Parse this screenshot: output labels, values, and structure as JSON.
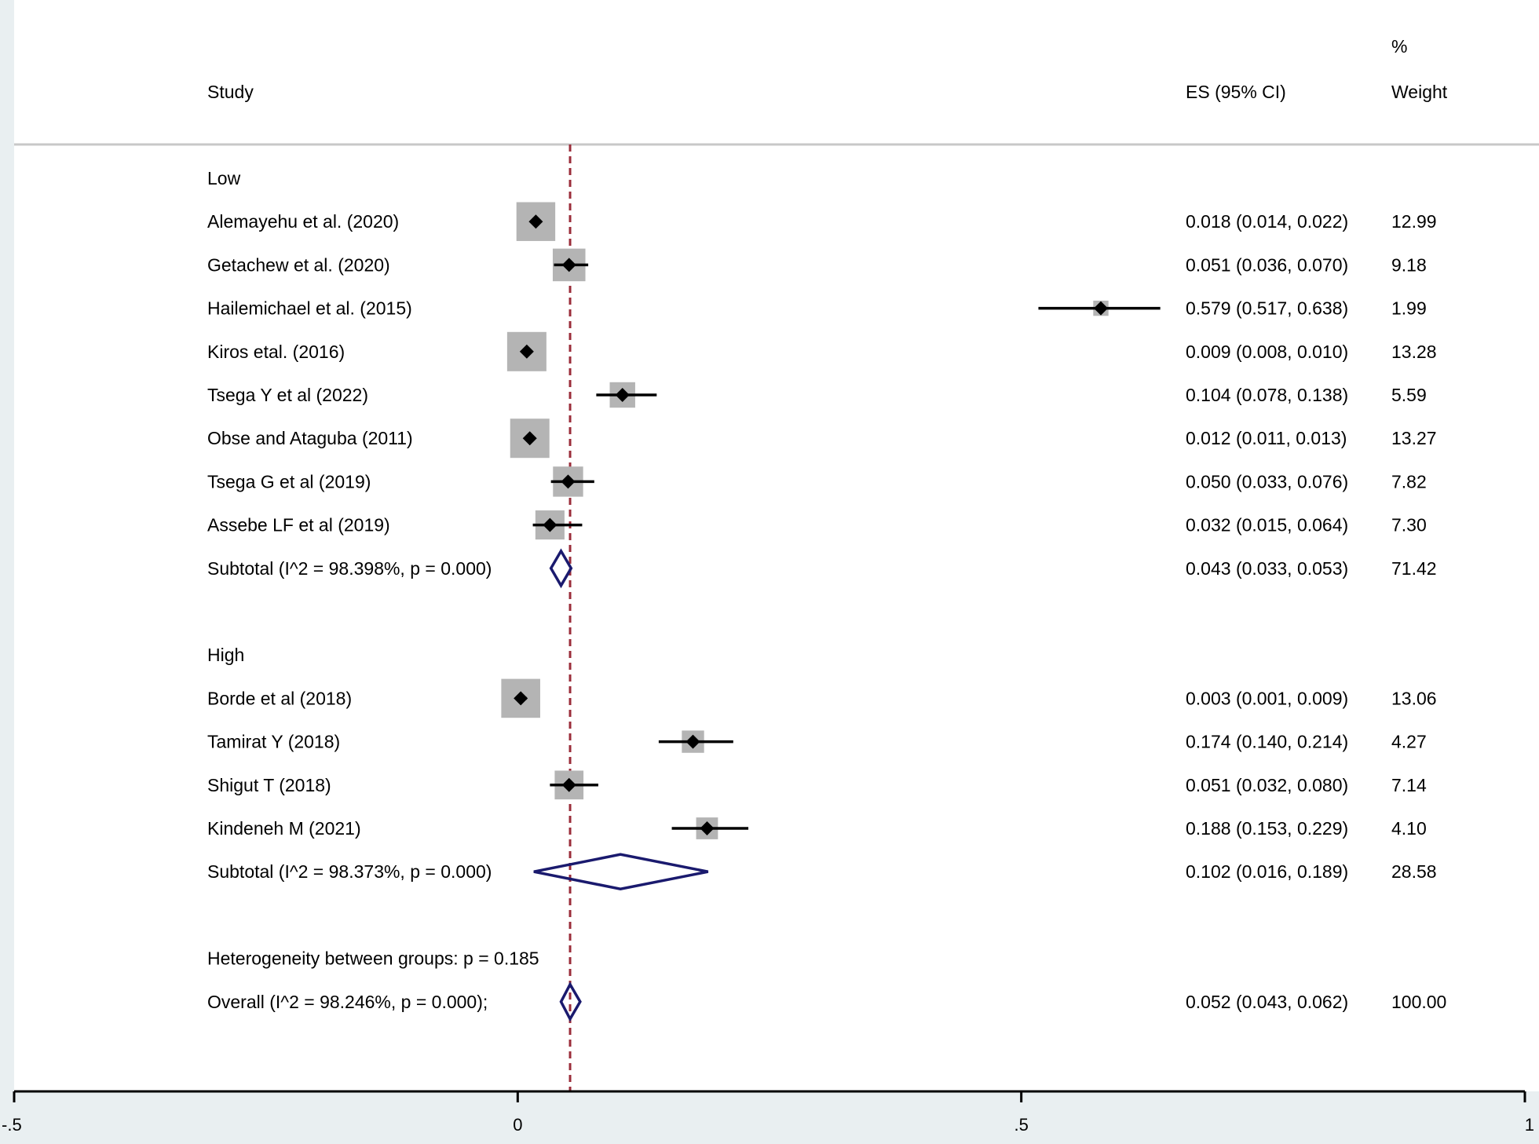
{
  "chart_data": {
    "type": "forest",
    "title": "",
    "xlabel": "",
    "ylabel": "",
    "xlim": [
      -0.5,
      1
    ],
    "xticks": [
      -0.5,
      0,
      0.5,
      1
    ],
    "xtick_labels": [
      "-.5",
      "0",
      ".5",
      "1"
    ],
    "reference_line": 0.052,
    "headers": {
      "study": "Study",
      "es": "ES (95% CI)",
      "weight_pct": "%",
      "weight": "Weight"
    },
    "rows": [
      {
        "kind": "group",
        "label": "Low"
      },
      {
        "kind": "study",
        "label": "Alemayehu et al. (2020)",
        "es": 0.018,
        "lo": 0.014,
        "hi": 0.022,
        "ci_text": "0.018 (0.014, 0.022)",
        "weight": 12.99,
        "weight_text": "12.99"
      },
      {
        "kind": "study",
        "label": "Getachew et al. (2020)",
        "es": 0.051,
        "lo": 0.036,
        "hi": 0.07,
        "ci_text": "0.051 (0.036, 0.070)",
        "weight": 9.18,
        "weight_text": "9.18"
      },
      {
        "kind": "study",
        "label": "Hailemichael et al. (2015)",
        "es": 0.579,
        "lo": 0.517,
        "hi": 0.638,
        "ci_text": "0.579 (0.517, 0.638)",
        "weight": 1.99,
        "weight_text": "1.99"
      },
      {
        "kind": "study",
        "label": "Kiros etal.  (2016)",
        "es": 0.009,
        "lo": 0.008,
        "hi": 0.01,
        "ci_text": "0.009 (0.008, 0.010)",
        "weight": 13.28,
        "weight_text": "13.28"
      },
      {
        "kind": "study",
        "label": "Tsega Y et al (2022)",
        "es": 0.104,
        "lo": 0.078,
        "hi": 0.138,
        "ci_text": "0.104 (0.078, 0.138)",
        "weight": 5.59,
        "weight_text": "5.59"
      },
      {
        "kind": "study",
        "label": "Obse and Ataguba (2011)",
        "es": 0.012,
        "lo": 0.011,
        "hi": 0.013,
        "ci_text": "0.012 (0.011, 0.013)",
        "weight": 13.27,
        "weight_text": "13.27"
      },
      {
        "kind": "study",
        "label": "Tsega G et al (2019)",
        "es": 0.05,
        "lo": 0.033,
        "hi": 0.076,
        "ci_text": "0.050 (0.033, 0.076)",
        "weight": 7.82,
        "weight_text": "7.82"
      },
      {
        "kind": "study",
        "label": "Assebe LF et al (2019)",
        "es": 0.032,
        "lo": 0.015,
        "hi": 0.064,
        "ci_text": "0.032 (0.015, 0.064)",
        "weight": 7.3,
        "weight_text": "7.30"
      },
      {
        "kind": "subtotal",
        "label": "Subtotal  (I^2 = 98.398%, p = 0.000)",
        "es": 0.043,
        "lo": 0.033,
        "hi": 0.053,
        "ci_text": "0.043 (0.033, 0.053)",
        "weight": 71.42,
        "weight_text": "71.42"
      },
      {
        "kind": "blank"
      },
      {
        "kind": "group",
        "label": "High"
      },
      {
        "kind": "study",
        "label": "Borde et al (2018)",
        "es": 0.003,
        "lo": 0.001,
        "hi": 0.009,
        "ci_text": "0.003 (0.001, 0.009)",
        "weight": 13.06,
        "weight_text": "13.06"
      },
      {
        "kind": "study",
        "label": "Tamirat Y (2018)",
        "es": 0.174,
        "lo": 0.14,
        "hi": 0.214,
        "ci_text": "0.174 (0.140, 0.214)",
        "weight": 4.27,
        "weight_text": "4.27"
      },
      {
        "kind": "study",
        "label": "Shigut T (2018)",
        "es": 0.051,
        "lo": 0.032,
        "hi": 0.08,
        "ci_text": "0.051 (0.032, 0.080)",
        "weight": 7.14,
        "weight_text": "7.14"
      },
      {
        "kind": "study",
        "label": "Kindeneh M (2021)",
        "es": 0.188,
        "lo": 0.153,
        "hi": 0.229,
        "ci_text": "0.188 (0.153, 0.229)",
        "weight": 4.1,
        "weight_text": "4.10"
      },
      {
        "kind": "subtotal",
        "label": "Subtotal  (I^2 = 98.373%, p = 0.000)",
        "es": 0.102,
        "lo": 0.016,
        "hi": 0.189,
        "ci_text": "0.102 (0.016, 0.189)",
        "weight": 28.58,
        "weight_text": "28.58"
      },
      {
        "kind": "blank"
      },
      {
        "kind": "note",
        "label": "Heterogeneity between groups: p = 0.185"
      },
      {
        "kind": "overall",
        "label": "Overall  (I^2 = 98.246%, p = 0.000);",
        "es": 0.052,
        "lo": 0.043,
        "hi": 0.062,
        "ci_text": "0.052 (0.043, 0.062)",
        "weight": 100.0,
        "weight_text": "100.00"
      }
    ]
  },
  "colors": {
    "background": "#e9eff1",
    "plot_area": "#ffffff",
    "weight_box": "#b4b4b4",
    "point": "#000000",
    "ci_line": "#000000",
    "diamond": "#1a1a6e",
    "reference_line": "#9b2d3a",
    "axis": "#000000",
    "text": "#000000"
  }
}
